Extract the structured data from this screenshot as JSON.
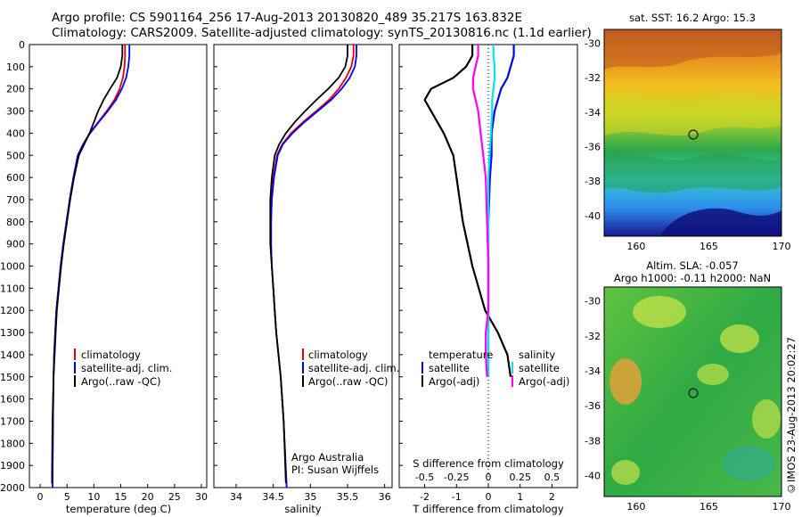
{
  "header": {
    "line1": "Argo profile: CS 5901164_256 17-Aug-2013 20130820_489 35.217S 163.832E",
    "line2": "Climatology: CARS2009. Satellite-adjusted climatology: synTS_20130816.nc (1.1d earlier)"
  },
  "colors": {
    "climatology": "#e00000",
    "satellite": "#0000ff",
    "argo": "#000000",
    "satellite_diff": "#00e5e5",
    "argo_diff": "#ff00ff"
  },
  "depth_axis": {
    "ylim": [
      0,
      2000
    ],
    "ticks": [
      "0",
      "100",
      "200",
      "300",
      "400",
      "500",
      "600",
      "700",
      "800",
      "900",
      "1000",
      "1100",
      "1200",
      "1300",
      "1400",
      "1500",
      "1600",
      "1700",
      "1800",
      "1900",
      "2000"
    ]
  },
  "panels": {
    "temperature": {
      "xlabel": "temperature (deg C)",
      "xticks": [
        "0",
        "5",
        "10",
        "15",
        "20",
        "25",
        "30"
      ],
      "legend": [
        "climatology",
        "satellite-adj. clim.",
        "Argo(..raw -QC)"
      ]
    },
    "salinity": {
      "xlabel": "salinity",
      "xticks": [
        "34",
        "34.5",
        "35",
        "35.5",
        "36"
      ],
      "legend": [
        "climatology",
        "satellite-adj. clim.",
        "Argo(..raw -QC)"
      ],
      "note1": "Argo Australia",
      "note2": "PI: Susan Wijffels"
    },
    "difference": {
      "xlabel_bottom": "T difference from climatology",
      "xlabel_top": "S difference from climatology",
      "xticks_t": [
        "-2",
        "-1",
        "0",
        "1",
        "2"
      ],
      "xticks_s": [
        "-0.5",
        "-0.25",
        "0",
        "0.25",
        "0.5"
      ],
      "legend_t_title": "temperature",
      "legend_t": [
        "satellite",
        "Argo(-adj)"
      ],
      "legend_s_title": "salinity",
      "legend_s": [
        "satellite",
        "Argo(-adj)"
      ]
    }
  },
  "maps": {
    "sst": {
      "title": "sat. SST: 16.2  Argo: 15.3",
      "yticks": [
        "-30",
        "-32",
        "-34",
        "-36",
        "-38",
        "-40"
      ],
      "xticks": [
        "160",
        "165",
        "170"
      ]
    },
    "sla": {
      "title1": "Altim. SLA: -0.057",
      "title2": "Argo h1000: -0.11 h2000: NaN",
      "yticks": [
        "-30",
        "-32",
        "-34",
        "-36",
        "-38",
        "-40"
      ],
      "xticks": [
        "160",
        "165",
        "170"
      ]
    },
    "side_label": "©IMOS 23-Aug-2013 20:02:27"
  },
  "chart_data": [
    {
      "type": "line",
      "xlabel": "temperature (deg C)",
      "xlim": [
        -2,
        31
      ],
      "ylim": [
        2000,
        0
      ],
      "series": [
        {
          "name": "climatology",
          "x": [
            15.8,
            15.8,
            15.7,
            15.4,
            14.8,
            13.8,
            12.4,
            10.8,
            9.2,
            8.0,
            7.0,
            6.2,
            5.5,
            4.9,
            4.3,
            3.8,
            3.4,
            3.0,
            2.8,
            2.6,
            2.5,
            2.4,
            2.3
          ],
          "y": [
            0,
            50,
            100,
            150,
            200,
            250,
            300,
            350,
            400,
            450,
            500,
            600,
            700,
            800,
            900,
            1000,
            1100,
            1200,
            1300,
            1400,
            1500,
            1700,
            2000
          ]
        },
        {
          "name": "satellite-adj. clim.",
          "x": [
            16.6,
            16.6,
            16.4,
            16.0,
            15.2,
            14.1,
            12.6,
            10.9,
            9.3,
            8.0,
            7.0,
            6.2,
            5.5,
            4.9,
            4.3,
            3.8,
            3.4,
            3.0,
            2.8,
            2.6,
            2.5,
            2.4,
            2.3
          ],
          "y": [
            0,
            50,
            100,
            150,
            200,
            250,
            300,
            350,
            400,
            450,
            500,
            600,
            700,
            800,
            900,
            1000,
            1100,
            1200,
            1300,
            1400,
            1500,
            1700,
            2000
          ]
        },
        {
          "name": "Argo(..raw -QC)",
          "x": [
            15.3,
            15.3,
            15.0,
            14.3,
            13.0,
            11.8,
            10.8,
            10.0,
            9.2,
            8.2,
            7.2,
            6.3,
            5.6,
            5.0,
            4.4,
            3.9,
            3.5,
            3.1,
            2.9,
            2.7,
            2.5,
            2.3,
            2.2
          ],
          "y": [
            0,
            50,
            100,
            150,
            200,
            250,
            300,
            350,
            400,
            450,
            500,
            600,
            700,
            800,
            900,
            1000,
            1100,
            1200,
            1300,
            1400,
            1500,
            1700,
            1980
          ]
        }
      ]
    },
    {
      "type": "line",
      "xlabel": "salinity",
      "xlim": [
        33.7,
        36.1
      ],
      "ylim": [
        2000,
        0
      ],
      "series": [
        {
          "name": "climatology",
          "x": [
            35.58,
            35.58,
            35.55,
            35.48,
            35.38,
            35.25,
            35.08,
            34.9,
            34.74,
            34.62,
            34.55,
            34.5,
            34.48,
            34.47,
            34.47,
            34.48,
            34.5,
            34.52,
            34.54,
            34.57,
            34.6,
            34.64,
            34.68
          ],
          "y": [
            0,
            50,
            100,
            150,
            200,
            250,
            300,
            350,
            400,
            450,
            500,
            600,
            700,
            800,
            900,
            1000,
            1100,
            1200,
            1300,
            1400,
            1500,
            1700,
            2000
          ]
        },
        {
          "name": "satellite-adj. clim.",
          "x": [
            35.62,
            35.62,
            35.6,
            35.53,
            35.42,
            35.28,
            35.1,
            34.92,
            34.76,
            34.63,
            34.56,
            34.51,
            34.48,
            34.47,
            34.47,
            34.48,
            34.5,
            34.52,
            34.54,
            34.57,
            34.6,
            34.64,
            34.68
          ],
          "y": [
            0,
            50,
            100,
            150,
            200,
            250,
            300,
            350,
            400,
            450,
            500,
            600,
            700,
            800,
            900,
            1000,
            1100,
            1200,
            1300,
            1400,
            1500,
            1700,
            2000
          ]
        },
        {
          "name": "Argo(..raw -QC)",
          "x": [
            35.5,
            35.5,
            35.47,
            35.38,
            35.24,
            35.08,
            34.93,
            34.79,
            34.67,
            34.58,
            34.52,
            34.48,
            34.46,
            34.46,
            34.46,
            34.48,
            34.5,
            34.52,
            34.54,
            34.57,
            34.6,
            34.64,
            34.67
          ],
          "y": [
            0,
            50,
            100,
            150,
            200,
            250,
            300,
            350,
            400,
            450,
            500,
            600,
            700,
            800,
            900,
            1000,
            1100,
            1200,
            1300,
            1400,
            1500,
            1700,
            1980
          ]
        }
      ]
    },
    {
      "type": "line",
      "xlabel": "T difference from climatology",
      "xlim": [
        -2.8,
        2.8
      ],
      "ylim": [
        2000,
        0
      ],
      "series": [
        {
          "name": "satellite",
          "x": [
            0.8,
            0.8,
            0.7,
            0.6,
            0.4,
            0.3,
            0.2,
            0.1,
            0.1,
            0.05,
            0,
            0,
            0,
            0,
            0,
            0
          ],
          "y": [
            0,
            50,
            100,
            150,
            200,
            250,
            300,
            400,
            500,
            600,
            800,
            1000,
            1200,
            1300,
            1400,
            1500
          ]
        },
        {
          "name": "Argo(-adj)",
          "x": [
            -0.5,
            -0.5,
            -0.7,
            -1.1,
            -1.8,
            -2.0,
            -1.8,
            -1.4,
            -1.1,
            -1.0,
            -0.8,
            -0.5,
            -0.1,
            0.3,
            0.6,
            0.7
          ],
          "y": [
            0,
            50,
            100,
            150,
            200,
            250,
            300,
            400,
            500,
            600,
            800,
            1000,
            1200,
            1300,
            1400,
            1500
          ]
        }
      ]
    },
    {
      "type": "line",
      "xlabel": "S difference from climatology",
      "xlim": [
        -0.7,
        0.7
      ],
      "ylim": [
        2000,
        0
      ],
      "series": [
        {
          "name": "satellite",
          "x": [
            0.04,
            0.04,
            0.05,
            0.05,
            0.04,
            0.03,
            0.03,
            0.02,
            0.01,
            0.0,
            0.0,
            0.0,
            0.0,
            0.0,
            0.0,
            0.0
          ],
          "y": [
            0,
            50,
            100,
            150,
            200,
            250,
            300,
            400,
            500,
            600,
            800,
            1000,
            1200,
            1300,
            1400,
            1500
          ]
        },
        {
          "name": "Argo(-adj)",
          "x": [
            -0.08,
            -0.08,
            -0.1,
            -0.12,
            -0.12,
            -0.1,
            -0.08,
            -0.06,
            -0.04,
            -0.02,
            -0.01,
            0.0,
            0.0,
            -0.02,
            -0.02,
            -0.01
          ],
          "y": [
            0,
            50,
            100,
            150,
            200,
            250,
            300,
            400,
            500,
            600,
            800,
            1000,
            1200,
            1300,
            1400,
            1500
          ]
        }
      ]
    }
  ]
}
